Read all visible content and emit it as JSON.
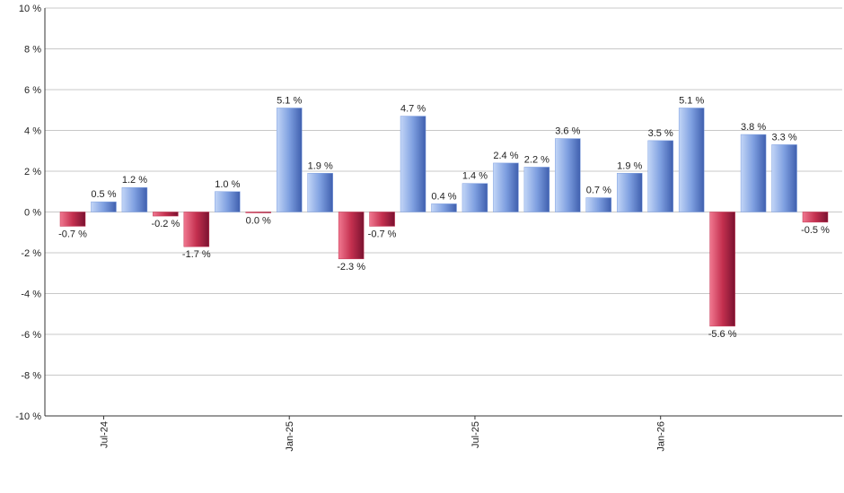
{
  "chart_data": {
    "type": "bar",
    "categories": [
      null,
      "Jul-24",
      null,
      null,
      null,
      null,
      null,
      "Jan-25",
      null,
      null,
      null,
      null,
      null,
      "Jul-25",
      null,
      null,
      null,
      null,
      null,
      "Jan-26",
      null,
      null,
      null,
      null,
      null
    ],
    "values": [
      -0.7,
      0.5,
      1.2,
      -0.2,
      -1.7,
      1.0,
      0.0,
      5.1,
      1.9,
      -2.3,
      -0.7,
      4.7,
      0.4,
      1.4,
      2.4,
      2.2,
      3.6,
      0.7,
      1.9,
      3.5,
      5.1,
      -5.6,
      3.8,
      3.3,
      -0.5
    ],
    "value_labels": [
      "-0.7 %",
      "0.5 %",
      "1.2 %",
      "-0.2 %",
      "-1.7 %",
      "1.0 %",
      "0.0 %",
      "5.1 %",
      "1.9 %",
      "-2.3 %",
      "-0.7 %",
      "4.7 %",
      "0.4 %",
      "1.4 %",
      "2.4 %",
      "2.2 %",
      "3.6 %",
      "0.7 %",
      "1.9 %",
      "3.5 %",
      "5.1 %",
      "-5.6 %",
      "3.8 %",
      "3.3 %",
      "-0.5 %"
    ],
    "positive_color": "#7e9fe0",
    "negative_color": "#c4304f",
    "ylim": [
      -10,
      10
    ],
    "yticks": [
      {
        "value": -10,
        "label": "-10 %"
      },
      {
        "value": -8,
        "label": "-8 %"
      },
      {
        "value": -6,
        "label": "-6 %"
      },
      {
        "value": -4,
        "label": "-4 %"
      },
      {
        "value": -2,
        "label": "-2 %"
      },
      {
        "value": 0,
        "label": "0 %"
      },
      {
        "value": 2,
        "label": "2 %"
      },
      {
        "value": 4,
        "label": "4 %"
      },
      {
        "value": 6,
        "label": "6 %"
      },
      {
        "value": 8,
        "label": "8 %"
      },
      {
        "value": 10,
        "label": "10 %"
      }
    ],
    "grid": true
  }
}
